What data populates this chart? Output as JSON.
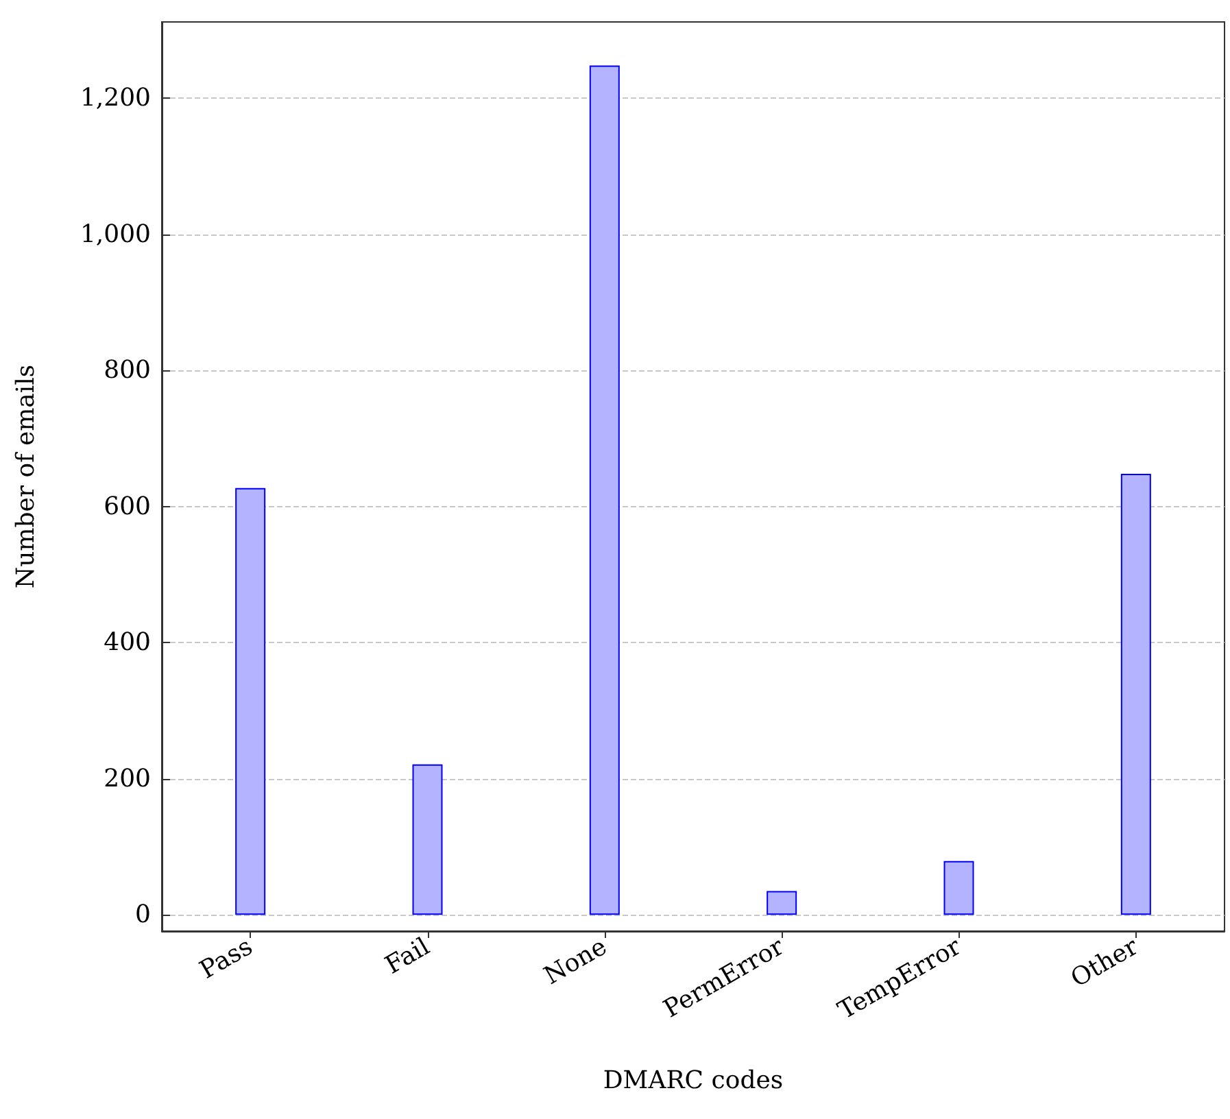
{
  "chart_data": {
    "type": "bar",
    "xlabel": "DMARC codes",
    "ylabel": "Number of emails",
    "categories": [
      "Pass",
      "Fail",
      "None",
      "PermError",
      "TempError",
      "Other"
    ],
    "values": [
      627,
      221,
      1248,
      35,
      79,
      648
    ],
    "color": "#b3b3ff",
    "ylim": [
      -24,
      1312
    ],
    "yticks": [
      0,
      200,
      400,
      600,
      800,
      {
        "value": 1000,
        "label": "1,000"
      },
      {
        "value": 1200,
        "label": "1,200"
      }
    ],
    "grid": "y"
  }
}
